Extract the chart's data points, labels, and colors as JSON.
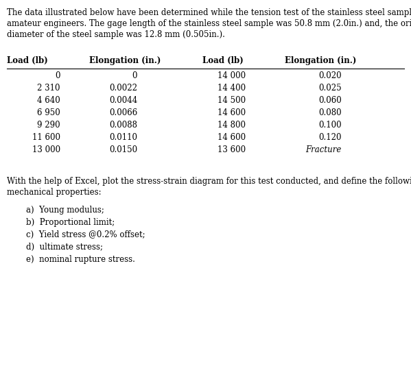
{
  "background_color": "#ffffff",
  "intro_line1": "The data illustrated below have been determined while the tension test of the stainless steel sample by",
  "intro_line2": "amateur engineers. The gage length of the stainless steel sample was 50.8 mm (2.0in.) and, the original",
  "intro_line3": "diameter of the steel sample was 12.8 mm (0.505in.).",
  "table_headers": [
    "Load (lb)",
    "Elongation (in.)",
    "Load (lb)",
    "Elongation (in.)"
  ],
  "col1_load": [
    "0",
    "2 310",
    "4 640",
    "6 950",
    "9 290",
    "11 600",
    "13 000"
  ],
  "col1_elong": [
    "0",
    "0.0022",
    "0.0044",
    "0.0066",
    "0.0088",
    "0.0110",
    "0.0150"
  ],
  "col2_load": [
    "14 000",
    "14 400",
    "14 500",
    "14 600",
    "14 800",
    "14 600",
    "13 600"
  ],
  "col2_elong": [
    "0.020",
    "0.025",
    "0.060",
    "0.080",
    "0.100",
    "0.120",
    "Fracture"
  ],
  "bottom_line1": "With the help of Excel, plot the stress-strain diagram for this test conducted, and define the following",
  "bottom_line2": "mechanical properties:",
  "list_items": [
    "a)  Young modulus;",
    "b)  Proportional limit;",
    "c)  Yield stress @0.2% offset;",
    "d)  ultimate stress;",
    "e)  nominal rupture stress."
  ],
  "font_size": 8.5,
  "font_size_bold": 8.5
}
